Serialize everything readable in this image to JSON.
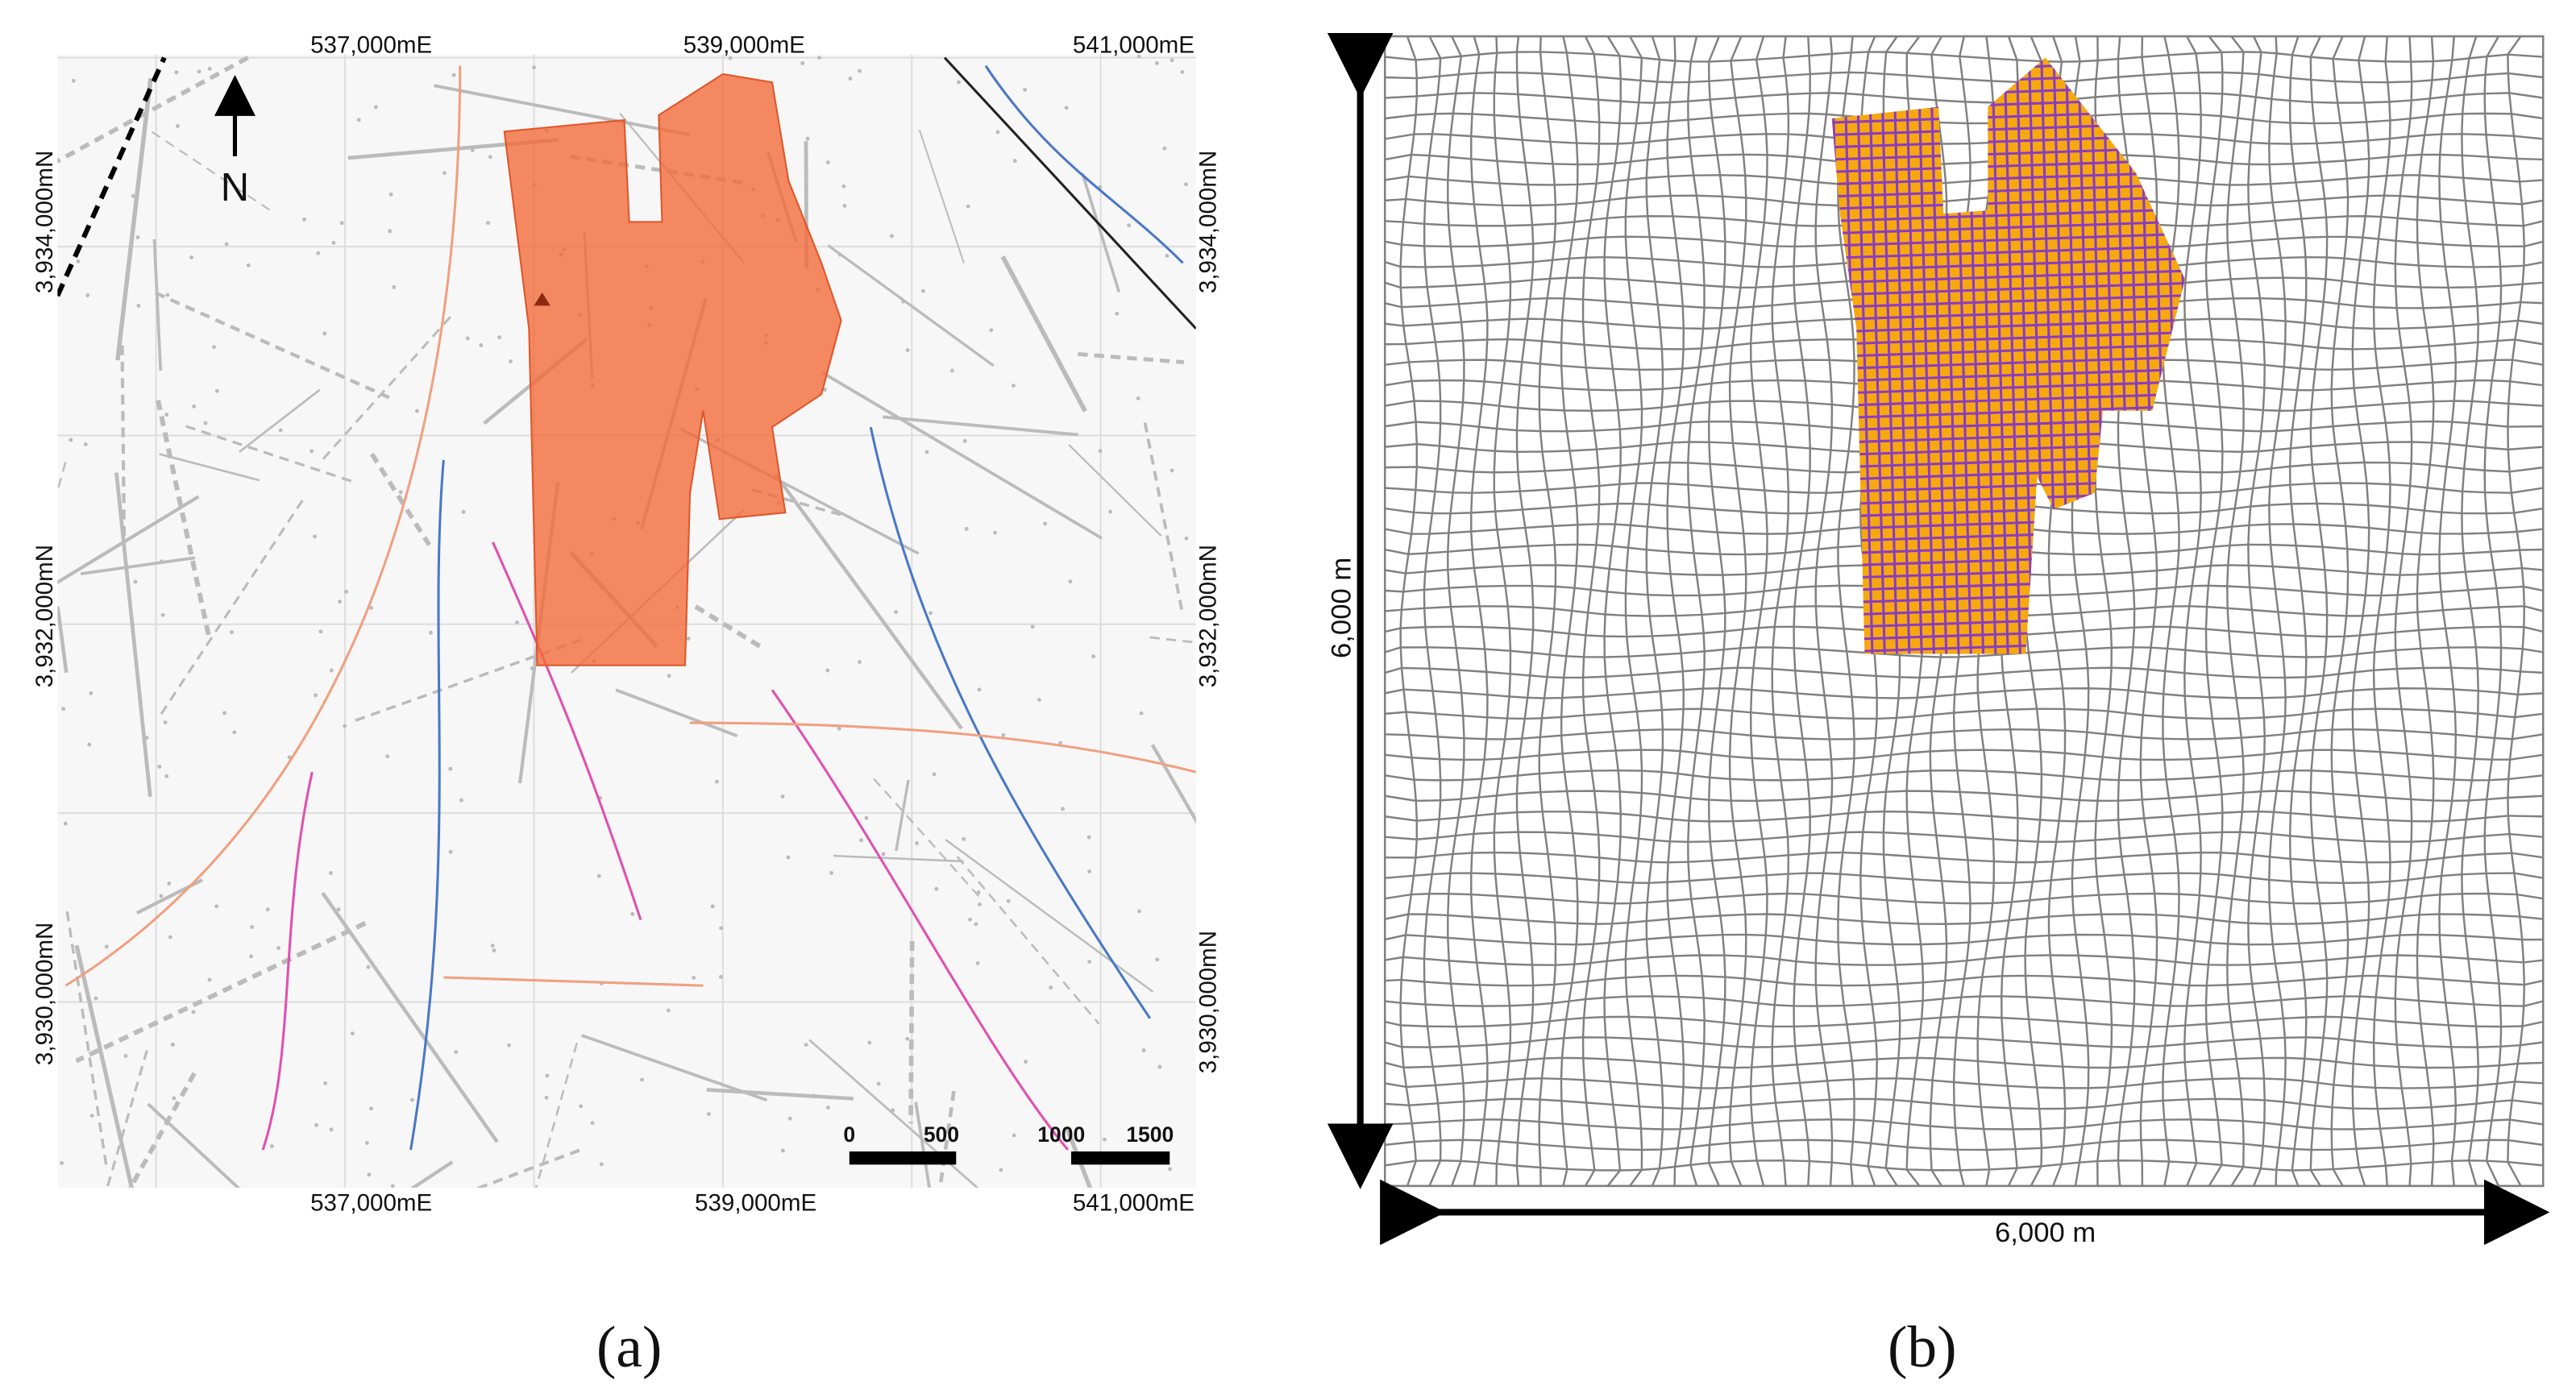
{
  "panel_a": {
    "easting_top": [
      "537,000mE",
      "539,000mE",
      "541,000mE"
    ],
    "easting_bottom": [
      "537,000mE",
      "539,000mE",
      "541,000mE"
    ],
    "northing_left": [
      "3,934,000mN",
      "3,932,000mN",
      "3,930,000mN"
    ],
    "northing_right": [
      "3,934,000mN",
      "3,932,000mN",
      "3,930,000mN"
    ],
    "north_label": "N",
    "scale_labels": [
      "0",
      "500",
      "1000",
      "1500"
    ],
    "caption": "(a)"
  },
  "panel_b": {
    "height_label": "6,000 m",
    "width_label": "6,000 m",
    "caption": "(b)"
  }
}
